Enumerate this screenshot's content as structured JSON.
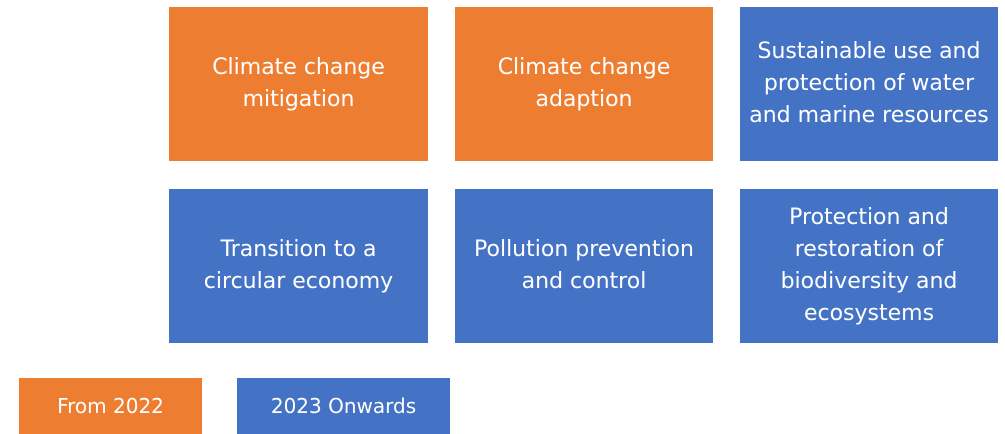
{
  "nodes": [
    {
      "label": "Climate change mitigation",
      "group": "From 2022"
    },
    {
      "label": "Climate change adaption",
      "group": "From 2022"
    },
    {
      "label": "Sustainable use and protection of water and marine resources",
      "group": "2023 Onwards"
    },
    {
      "label": "Transition to a circular economy",
      "group": "2023 Onwards"
    },
    {
      "label": "Pollution prevention and control",
      "group": "2023 Onwards"
    },
    {
      "label": "Protection and restoration of biodiversity and ecosystems",
      "group": "2023 Onwards"
    }
  ],
  "legend": [
    "From 2022",
    "2023 Onwards"
  ]
}
